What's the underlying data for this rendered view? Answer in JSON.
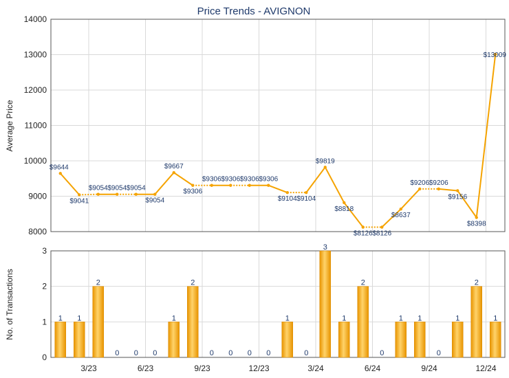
{
  "chart_data": [
    {
      "type": "line",
      "title": "Price Trends - AVIGNON",
      "ylabel": "Average Price",
      "ylim": [
        8000,
        14000
      ],
      "yticks": [
        "8000",
        "9000",
        "10000",
        "11000",
        "12000",
        "13000",
        "14000"
      ],
      "xticks": [
        "3/23",
        "6/23",
        "9/23",
        "12/23",
        "3/24",
        "6/24",
        "9/24",
        "12/24"
      ],
      "grid": true,
      "color": "#f5a300",
      "values": [
        9644,
        9041,
        9054,
        9054,
        9054,
        9054,
        9667,
        9306,
        9306,
        9306,
        9306,
        9306,
        9104,
        9104,
        9819,
        8818,
        8126,
        8126,
        8637,
        9206,
        9206,
        9156,
        8398,
        13009
      ],
      "labels": [
        "$9644",
        "$9041",
        "$9054",
        "$9054",
        "$9054",
        "$9054",
        "$9667",
        "$9306",
        "$9306",
        "$9306",
        "$9306",
        "$9306",
        "$9104",
        "$9104",
        "$9819",
        "$8818",
        "$8126",
        "$8126",
        "$8637",
        "$9206",
        "$9206",
        "$9156",
        "$8398",
        "$13009"
      ],
      "carried": [
        false,
        false,
        true,
        false,
        true,
        false,
        false,
        false,
        true,
        false,
        true,
        false,
        false,
        true,
        false,
        false,
        false,
        true,
        false,
        false,
        true,
        false,
        false,
        false
      ]
    },
    {
      "type": "bar",
      "ylabel": "No. of Transactions",
      "ylim": [
        0,
        3
      ],
      "yticks": [
        "0",
        "1",
        "2",
        "3"
      ],
      "xticks": [
        "3/23",
        "6/23",
        "9/23",
        "12/23",
        "3/24",
        "6/24",
        "9/24",
        "12/24"
      ],
      "grid": true,
      "color": "#f5a300",
      "values": [
        1,
        1,
        2,
        0,
        0,
        0,
        1,
        2,
        0,
        0,
        0,
        0,
        1,
        0,
        3,
        1,
        2,
        0,
        1,
        1,
        0,
        1,
        2,
        1
      ],
      "labels": [
        "1",
        "1",
        "2",
        "0",
        "0",
        "0",
        "1",
        "2",
        "0",
        "0",
        "0",
        "0",
        "1",
        "0",
        "3",
        "1",
        "2",
        "0",
        "1",
        "1",
        "0",
        "1",
        "2",
        "1"
      ]
    }
  ]
}
